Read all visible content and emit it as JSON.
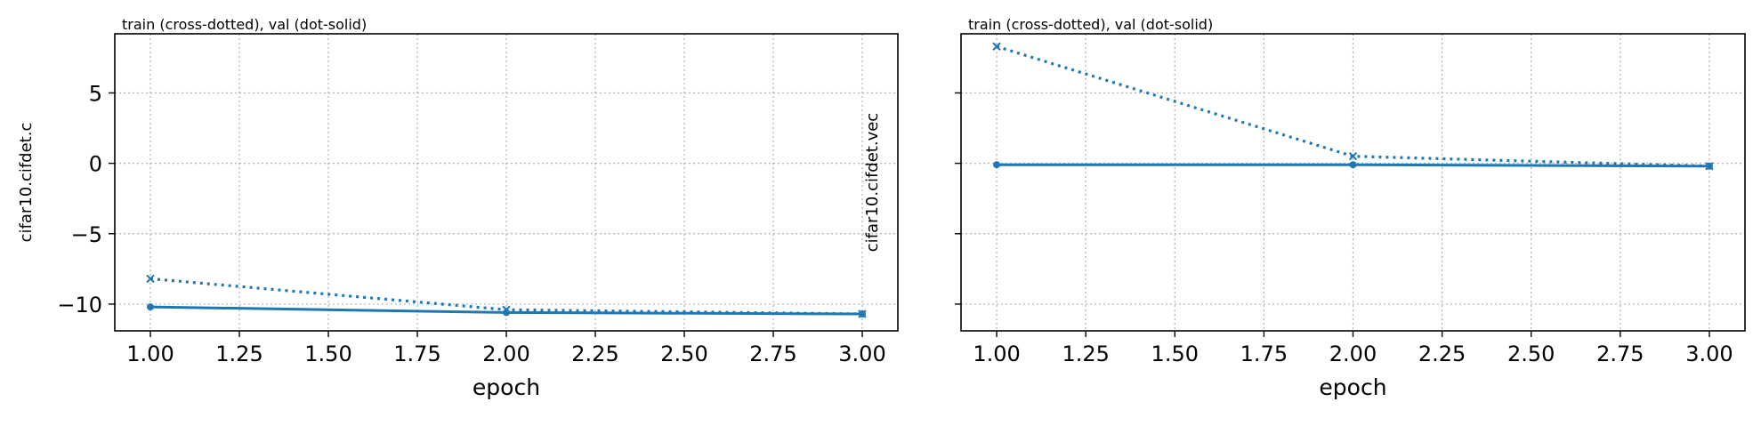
{
  "chart_data": [
    {
      "type": "line",
      "title": "train (cross-dotted), val (dot-solid)",
      "xlabel": "epoch",
      "ylabel": "cifar10.cifdet.c",
      "xlim": [
        0.9,
        3.1
      ],
      "ylim": [
        -11.9,
        9.2
      ],
      "xticks": [
        1.0,
        1.25,
        1.5,
        1.75,
        2.0,
        2.25,
        2.5,
        2.75,
        3.0
      ],
      "xtick_labels": [
        "1.00",
        "1.25",
        "1.50",
        "1.75",
        "2.00",
        "2.25",
        "2.50",
        "2.75",
        "3.00"
      ],
      "yticks": [
        5,
        0,
        -5,
        -10
      ],
      "ytick_labels": [
        "5",
        "0",
        "−5",
        "−10"
      ],
      "grid": true,
      "series": [
        {
          "style": "cross-dotted",
          "x": [
            1,
            2,
            3
          ],
          "y": [
            -8.2,
            -10.4,
            -10.7
          ]
        },
        {
          "style": "dot-solid",
          "x": [
            1,
            2,
            3
          ],
          "y": [
            -10.2,
            -10.6,
            -10.7
          ]
        }
      ]
    },
    {
      "type": "line",
      "title": "train (cross-dotted), val (dot-solid)",
      "xlabel": "epoch",
      "ylabel": "cifar10.cifdet.vec",
      "xlim": [
        0.9,
        3.1
      ],
      "ylim": [
        -11.9,
        9.2
      ],
      "xticks": [
        1.0,
        1.25,
        1.5,
        1.75,
        2.0,
        2.25,
        2.5,
        2.75,
        3.0
      ],
      "xtick_labels": [
        "1.00",
        "1.25",
        "1.50",
        "1.75",
        "2.00",
        "2.25",
        "2.50",
        "2.75",
        "3.00"
      ],
      "yticks": [
        5,
        0,
        -5,
        -10
      ],
      "ytick_labels": [
        "",
        "",
        "",
        ""
      ],
      "grid": true,
      "series": [
        {
          "style": "cross-dotted",
          "x": [
            1,
            2,
            3
          ],
          "y": [
            8.3,
            0.5,
            -0.2
          ]
        },
        {
          "style": "dot-solid",
          "x": [
            1,
            2,
            3
          ],
          "y": [
            -0.1,
            -0.1,
            -0.2
          ]
        }
      ]
    }
  ],
  "colors": {
    "series": "#1f77b4",
    "grid": "#b0b0b0",
    "axes": "#000000"
  }
}
